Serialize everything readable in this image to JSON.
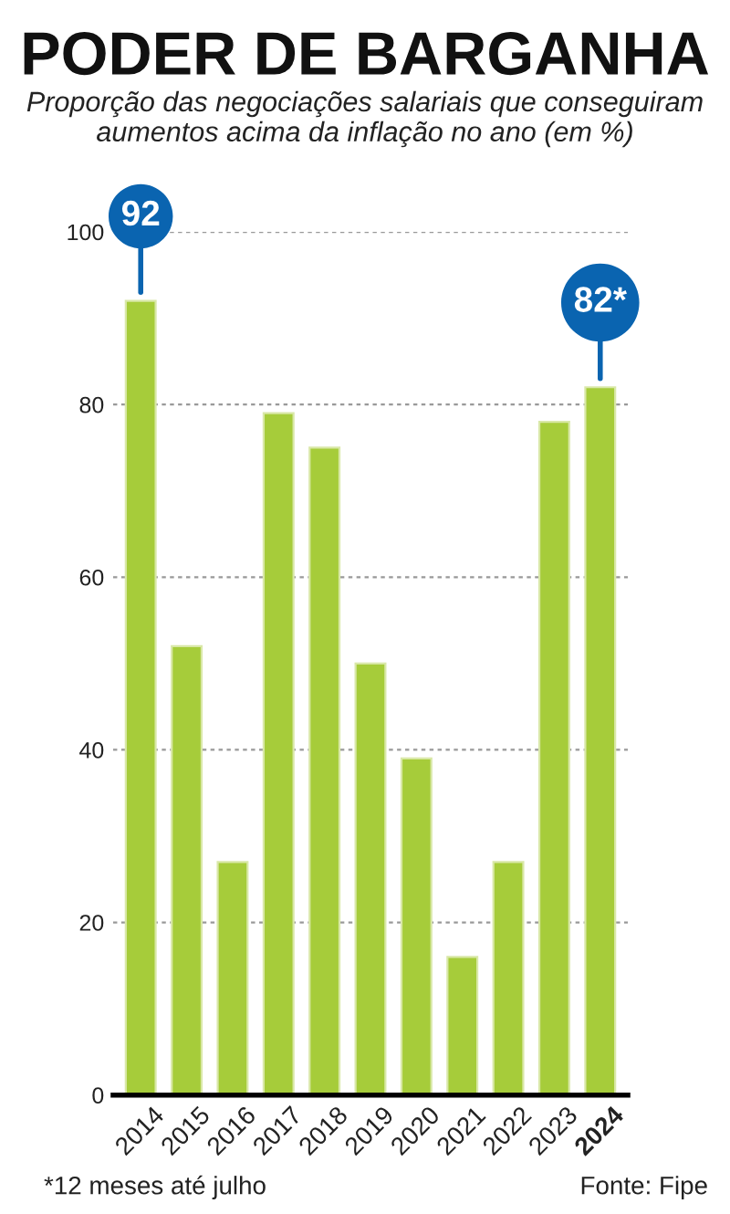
{
  "chart_data": {
    "type": "bar",
    "title": "PODER DE BARGANHA",
    "subtitle": "Proporção das negociações salariais que conseguiram aumentos acima da inflação no ano (em %)",
    "categories": [
      "2014",
      "2015",
      "2016",
      "2017",
      "2018",
      "2019",
      "2020",
      "2021",
      "2022",
      "2023",
      "2024"
    ],
    "values": [
      92,
      52,
      27,
      79,
      75,
      50,
      39,
      16,
      27,
      78,
      82
    ],
    "value_labels": [
      "92",
      null,
      null,
      null,
      null,
      null,
      null,
      null,
      null,
      null,
      "82*"
    ],
    "color": "#a6cc3a",
    "ylim": [
      0,
      100
    ],
    "yticks": [
      0,
      20,
      40,
      60,
      80,
      100
    ],
    "grid": "y",
    "annotations": [
      "*12 meses até julho",
      "Fonte: Fipe"
    ]
  }
}
